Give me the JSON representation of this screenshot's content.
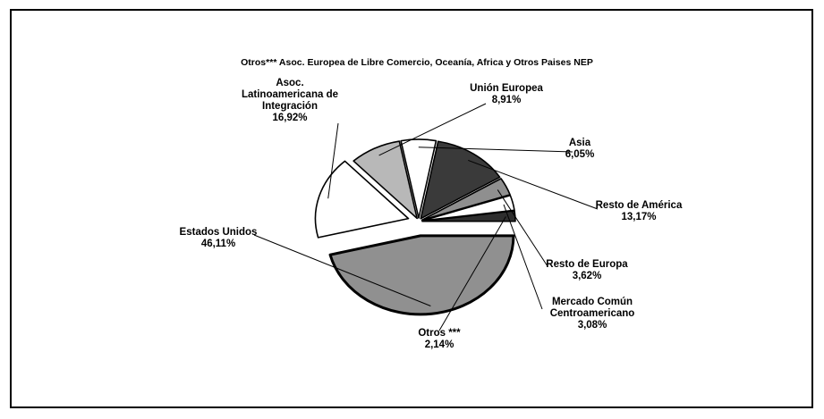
{
  "chart_data": {
    "type": "pie",
    "title": "",
    "subtitle": "Otros*** Asoc. Europea de Libre Comercio, Oceanía, Africa y Otros Paises NEP",
    "exploded": true,
    "slices": [
      {
        "name": "Asoc. Latinoamericana de Integración",
        "label_lines": [
          "Asoc.",
          "Latinoamericana de",
          "Integración"
        ],
        "value": 16.92,
        "value_label": "16,92%",
        "color": "#ffffff"
      },
      {
        "name": "Unión Europea",
        "label_lines": [
          "Unión Europea"
        ],
        "value": 8.91,
        "value_label": "8,91%",
        "color": "#b8b8b8"
      },
      {
        "name": "Asia",
        "label_lines": [
          "Asia"
        ],
        "value": 6.05,
        "value_label": "6,05%",
        "color": "#ffffff"
      },
      {
        "name": "Resto de América",
        "label_lines": [
          "Resto de América"
        ],
        "value": 13.17,
        "value_label": "13,17%",
        "color": "#3a3a3a"
      },
      {
        "name": "Resto de Europa",
        "label_lines": [
          "Resto de Europa"
        ],
        "value": 3.62,
        "value_label": "3,62%",
        "color": "#8f8f8f"
      },
      {
        "name": "Mercado Común Centroamericano",
        "label_lines": [
          "Mercado Común",
          "Centroamericano"
        ],
        "value": 3.08,
        "value_label": "3,08%",
        "color": "#ffffff"
      },
      {
        "name": "Otros ***",
        "label_lines": [
          "Otros ***"
        ],
        "value": 2.14,
        "value_label": "2,14%",
        "color": "#2e2e2e"
      },
      {
        "name": "Estados Unidos",
        "label_lines": [
          "Estados Unidos"
        ],
        "value": 46.11,
        "value_label": "46,11%",
        "color": "#909090"
      }
    ]
  }
}
